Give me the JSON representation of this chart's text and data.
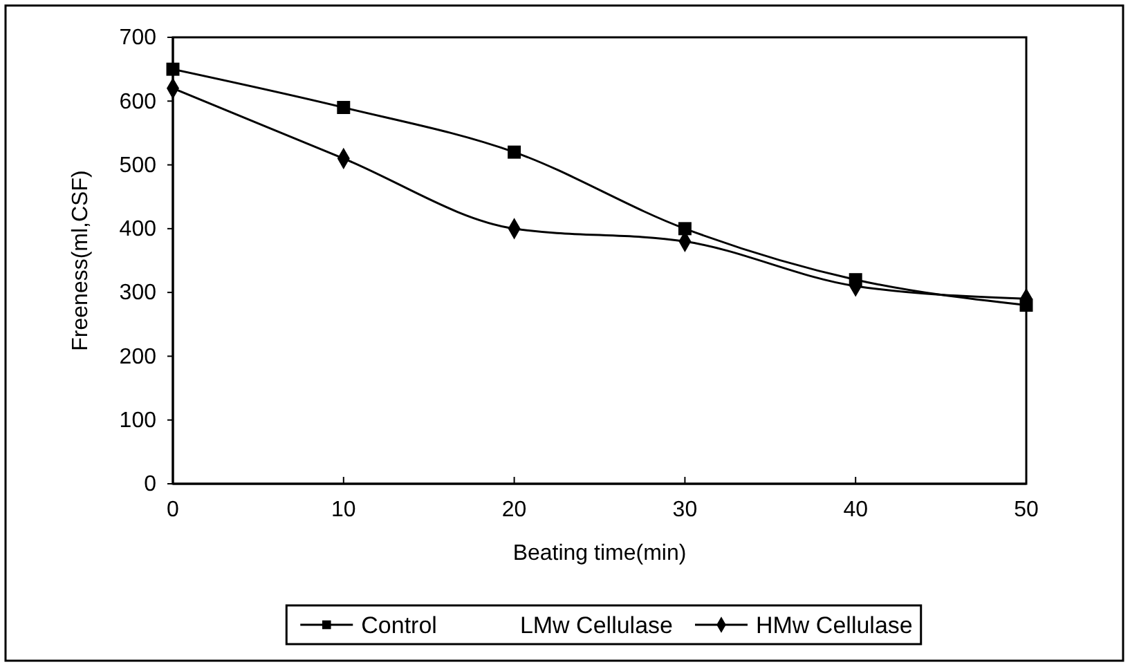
{
  "chart_data": {
    "type": "line",
    "xlabel": "Beating time(min)",
    "ylabel": "Freeness(ml,CSF)",
    "x": [
      0,
      10,
      20,
      30,
      40,
      50
    ],
    "series": [
      {
        "name": "Control",
        "color": "#000000",
        "marker": "square",
        "values": [
          650,
          590,
          520,
          400,
          320,
          280
        ]
      },
      {
        "name": "LMw Cellulase",
        "marker": "none",
        "values": [
          null,
          null,
          null,
          null,
          null,
          null
        ]
      },
      {
        "name": "HMw Cellulase",
        "color": "#000000",
        "marker": "diamond",
        "values": [
          620,
          510,
          400,
          380,
          310,
          290
        ]
      }
    ],
    "xlim": [
      0,
      50
    ],
    "xticks": [
      0,
      10,
      20,
      30,
      40,
      50
    ],
    "ylim": [
      0,
      700
    ],
    "yticks": [
      0,
      100,
      200,
      300,
      400,
      500,
      600,
      700
    ],
    "grid": false,
    "legend": "bottom",
    "line_style": "solid"
  }
}
